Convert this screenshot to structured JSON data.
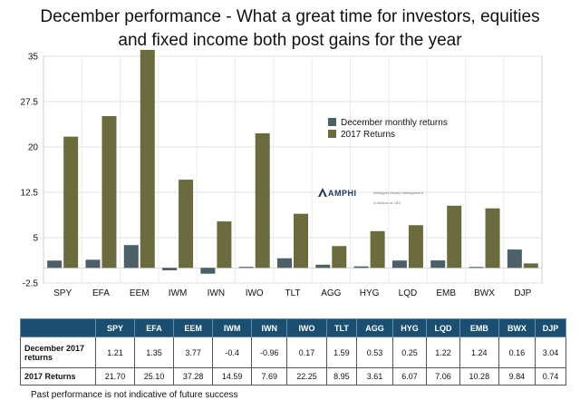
{
  "header": {
    "title_line1": "December performance - What a great time for investors, equities",
    "title_line2": "and fixed income both post gains for the year"
  },
  "chart_data": {
    "type": "bar",
    "categories": [
      "SPY",
      "EFA",
      "EEM",
      "IWM",
      "IWN",
      "IWO",
      "TLT",
      "AGG",
      "HYG",
      "LQD",
      "EMB",
      "BWX",
      "DJP"
    ],
    "series": [
      {
        "name": "December monthly returns",
        "color": "#4b6068",
        "values": [
          1.21,
          1.35,
          3.77,
          -0.4,
          -0.96,
          0.17,
          1.59,
          0.53,
          0.25,
          1.22,
          1.24,
          0.16,
          3.04
        ]
      },
      {
        "name": "2017 Returns",
        "color": "#6b6b3e",
        "values": [
          21.7,
          25.1,
          37.28,
          14.59,
          7.69,
          22.25,
          8.95,
          3.61,
          6.07,
          7.06,
          10.28,
          9.84,
          0.74
        ]
      }
    ],
    "ylim": [
      -2.5,
      35
    ],
    "yticks": [
      -2.5,
      5,
      12.5,
      20,
      27.5,
      35
    ],
    "ytick_labels": [
      "-2.5",
      "5",
      "12.5",
      "20",
      "27.5",
      "35"
    ],
    "grid": true,
    "legend_position": "center-right"
  },
  "logo": {
    "brand": "AMPHI",
    "tagline": "Intelligent Money Management",
    "subline": "A division of LBS"
  },
  "table": {
    "columns": [
      "SPY",
      "EFA",
      "EEM",
      "IWM",
      "IWN",
      "IWO",
      "TLT",
      "AGG",
      "HYG",
      "LQD",
      "EMB",
      "BWX",
      "DJP"
    ],
    "rows": [
      {
        "label": "December 2017 returns",
        "values": [
          "1.21",
          "1.35",
          "3.77",
          "-0.4",
          "-0.96",
          "0.17",
          "1.59",
          "0.53",
          "0.25",
          "1.22",
          "1.24",
          "0.16",
          "3.04"
        ]
      },
      {
        "label": "2017 Returns",
        "values": [
          "21.70",
          "25.10",
          "37.28",
          "14.59",
          "7.69",
          "22.25",
          "8.95",
          "3.61",
          "6.07",
          "7.06",
          "10.28",
          "9.84",
          "0.74"
        ]
      }
    ]
  },
  "footnote": "Past performance is not indicative of future success"
}
